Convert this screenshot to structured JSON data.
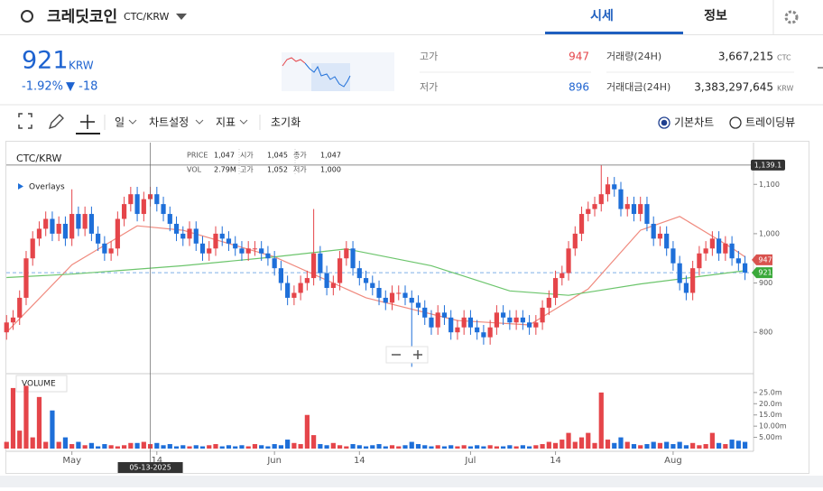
{
  "header": {
    "title": "크레딧코인",
    "pair": "CTC/KRW",
    "tabs": [
      "시세",
      "정보"
    ]
  },
  "ticker": {
    "price": "921",
    "unit": "KRW",
    "change_rate": "-1.92%",
    "change": "▼ -18"
  },
  "stats": {
    "high_label": "고가",
    "high": "947",
    "low_label": "저가",
    "low": "896",
    "volume_label": "거래량(24H)",
    "volume": "3,667,215",
    "volume_unit": "CTC",
    "value_label": "거래대금(24H)",
    "value": "3,383,297,645",
    "value_unit": "KRW"
  },
  "toolbar": {
    "interval": "일",
    "settings": "차트설정",
    "indicators": "지표",
    "reset": "초기화",
    "modes": [
      "기본차트",
      "트레이딩뷰"
    ]
  },
  "chart_data": {
    "type": "candlestick",
    "symbol": "CTC/KRW",
    "overlays_label": "Overlays",
    "volume_label": "VOLUME",
    "info": [
      {
        "label": "PRICE",
        "value": "1,047"
      },
      {
        "label": "시가",
        "value": "1,045"
      },
      {
        "label": "종가",
        "value": "1,047"
      },
      {
        "label": "VOL",
        "value": "2.79M"
      },
      {
        "label": "고가",
        "value": "1,052"
      },
      {
        "label": "저가",
        "value": "1,000"
      }
    ],
    "up_color": "#e5454a",
    "down_color": "#1e6fd9",
    "open": [
      800,
      820,
      830,
      870,
      950,
      990,
      1010,
      1030,
      1000,
      1020,
      990,
      1040,
      1010,
      1040,
      1000,
      980,
      960,
      970,
      1030,
      1060,
      1080,
      1040,
      1070,
      1080,
      1060,
      1040,
      1020,
      1000,
      990,
      1010,
      980,
      960,
      970,
      1000,
      990,
      980,
      970,
      960,
      970,
      970,
      960,
      950,
      930,
      900,
      870,
      880,
      900,
      910,
      960,
      920,
      890,
      900,
      950,
      970,
      930,
      910,
      900,
      890,
      870,
      860,
      880,
      880,
      870,
      860,
      850,
      830,
      810,
      840,
      830,
      800,
      810,
      830,
      810,
      800,
      790,
      810,
      840,
      830,
      820,
      830,
      820,
      810,
      820,
      850,
      870,
      910,
      920,
      970,
      1000,
      1040,
      1050,
      1060,
      1080,
      1100,
      1090,
      1050,
      1060,
      1040,
      1060,
      1020,
      990,
      1000,
      970,
      940,
      900,
      880,
      930,
      960,
      970,
      990,
      960,
      980,
      950,
      940
    ],
    "high": [
      835,
      845,
      885,
      965,
      1005,
      1025,
      1045,
      1045,
      1035,
      1035,
      1090,
      1055,
      1055,
      1055,
      1015,
      995,
      985,
      1045,
      1075,
      1095,
      1095,
      1085,
      1095,
      1095,
      1075,
      1055,
      1035,
      1015,
      1025,
      1025,
      995,
      985,
      1015,
      1015,
      1005,
      995,
      985,
      985,
      985,
      985,
      975,
      965,
      945,
      915,
      895,
      915,
      925,
      1050,
      975,
      935,
      915,
      965,
      985,
      985,
      945,
      925,
      915,
      905,
      885,
      895,
      895,
      895,
      885,
      875,
      865,
      845,
      855,
      855,
      845,
      825,
      845,
      845,
      825,
      815,
      825,
      855,
      855,
      845,
      845,
      845,
      835,
      835,
      865,
      885,
      925,
      935,
      985,
      1015,
      1055,
      1065,
      1075,
      1139,
      1115,
      1115,
      1105,
      1075,
      1075,
      1075,
      1075,
      1035,
      1015,
      1015,
      985,
      955,
      915,
      945,
      975,
      985,
      1005,
      1005,
      995,
      995,
      965,
      955
    ],
    "low": [
      785,
      805,
      815,
      855,
      935,
      975,
      995,
      985,
      985,
      975,
      975,
      995,
      995,
      985,
      965,
      945,
      945,
      955,
      1015,
      1045,
      1025,
      1025,
      1055,
      1045,
      1025,
      1005,
      985,
      975,
      975,
      965,
      945,
      945,
      955,
      975,
      965,
      955,
      945,
      945,
      955,
      945,
      935,
      915,
      885,
      855,
      855,
      865,
      885,
      895,
      905,
      875,
      875,
      885,
      935,
      915,
      895,
      885,
      875,
      855,
      845,
      845,
      865,
      855,
      730,
      835,
      815,
      795,
      795,
      815,
      785,
      785,
      795,
      795,
      785,
      775,
      775,
      795,
      815,
      805,
      805,
      805,
      795,
      795,
      805,
      835,
      855,
      895,
      905,
      955,
      985,
      1025,
      1035,
      1045,
      1065,
      1075,
      1035,
      1035,
      1025,
      1025,
      1005,
      975,
      975,
      955,
      925,
      885,
      865,
      865,
      915,
      945,
      955,
      945,
      945,
      935,
      925,
      906
    ],
    "close": [
      820,
      830,
      870,
      950,
      990,
      1010,
      1030,
      1000,
      1020,
      990,
      1040,
      1010,
      1040,
      1000,
      980,
      960,
      970,
      1030,
      1060,
      1080,
      1040,
      1070,
      1080,
      1060,
      1040,
      1020,
      1000,
      990,
      1010,
      980,
      960,
      970,
      1000,
      990,
      980,
      970,
      960,
      970,
      970,
      960,
      950,
      930,
      900,
      870,
      880,
      900,
      910,
      960,
      920,
      890,
      900,
      950,
      970,
      930,
      910,
      900,
      890,
      870,
      860,
      880,
      880,
      870,
      860,
      850,
      830,
      810,
      840,
      830,
      800,
      810,
      830,
      810,
      800,
      790,
      810,
      840,
      830,
      820,
      830,
      820,
      810,
      820,
      850,
      870,
      910,
      920,
      970,
      1000,
      1040,
      1050,
      1060,
      1080,
      1100,
      1090,
      1050,
      1060,
      1040,
      1060,
      1020,
      990,
      1000,
      970,
      940,
      900,
      880,
      930,
      960,
      970,
      990,
      960,
      980,
      950,
      940,
      921
    ],
    "volume": [
      3000000,
      27000000,
      8000000,
      28000000,
      5000000,
      23000000,
      3000000,
      17000000,
      3000000,
      5000000,
      2000000,
      3000000,
      1500000,
      2500000,
      1000000,
      2000000,
      1500000,
      1000000,
      1500000,
      2500000,
      2500000,
      3000000,
      2000000,
      2500000,
      1500000,
      2000000,
      1000000,
      1500000,
      1000000,
      1500000,
      1000000,
      1500000,
      2000000,
      1000000,
      1500000,
      1000000,
      1500000,
      1000000,
      2000000,
      1500000,
      1000000,
      2000000,
      1500000,
      4000000,
      2500000,
      2000000,
      15000000,
      6000000,
      2000000,
      1500000,
      2500000,
      1500000,
      1000000,
      2000000,
      1500000,
      1000000,
      1500000,
      2000000,
      1000000,
      1500000,
      1000000,
      1500000,
      3000000,
      2000000,
      1500000,
      1000000,
      1500000,
      1000000,
      1500000,
      1000000,
      1500000,
      1000000,
      1500000,
      1000000,
      1500000,
      1000000,
      1000000,
      1500000,
      1000000,
      1500000,
      1000000,
      1500000,
      2000000,
      3000000,
      2500000,
      4000000,
      7000000,
      3000000,
      5000000,
      7000000,
      2500000,
      25000000,
      4000000,
      2500000,
      5000000,
      3000000,
      2000000,
      1500000,
      2000000,
      3000000,
      2500000,
      3000000,
      2000000,
      3000000,
      1500000,
      2500000,
      1500000,
      2000000,
      7000000,
      2500000,
      2000000,
      4000000,
      3500000,
      3000000
    ],
    "overlays": [
      {
        "color": "#f08a7e",
        "x": [
          0,
          10,
          20,
          27,
          41,
          55,
          69,
          80,
          89,
          97,
          103,
          111,
          113
        ],
        "values": [
          800,
          937,
          1016,
          1007,
          953,
          870,
          824,
          815,
          888,
          1007,
          1035,
          971,
          953
        ]
      },
      {
        "color": "#6cc56c",
        "x": [
          0,
          10,
          27,
          41,
          52,
          65,
          77,
          86,
          97,
          113
        ],
        "values": [
          911,
          918,
          935,
          953,
          969,
          935,
          884,
          875,
          898,
          925
        ]
      }
    ],
    "xlim": [
      -1,
      114.3
    ],
    "ylim": [
      718,
      1181
    ],
    "yticks": [
      800,
      900,
      {
        "value": 1000,
        "label": "1,000"
      },
      {
        "value": 1100,
        "label": "1,100"
      }
    ],
    "xticks": [
      {
        "value": 10,
        "label": "May"
      },
      {
        "value": 23,
        "label": "14"
      },
      {
        "value": 41,
        "label": "Jun"
      },
      {
        "value": 54,
        "label": "14"
      },
      {
        "value": 71,
        "label": "Jul"
      },
      {
        "value": 84,
        "label": "14"
      },
      {
        "value": 102,
        "label": "Aug"
      }
    ],
    "volume_ylim": [
      0,
      33000000
    ],
    "volume_yticks": [
      {
        "value": 5000000,
        "label": "5.00m"
      },
      {
        "value": 10000000,
        "label": "10.00m"
      },
      {
        "value": 15000000,
        "label": "15.0m"
      },
      {
        "value": 20000000,
        "label": "20.0m"
      },
      {
        "value": 25000000,
        "label": "25.0m"
      }
    ],
    "crosshair": {
      "index": 22,
      "date": "05-13-2025",
      "price": {
        "value": 1139.1,
        "label": "1,139.1"
      }
    },
    "high_tag": 947,
    "last_price": 921
  }
}
